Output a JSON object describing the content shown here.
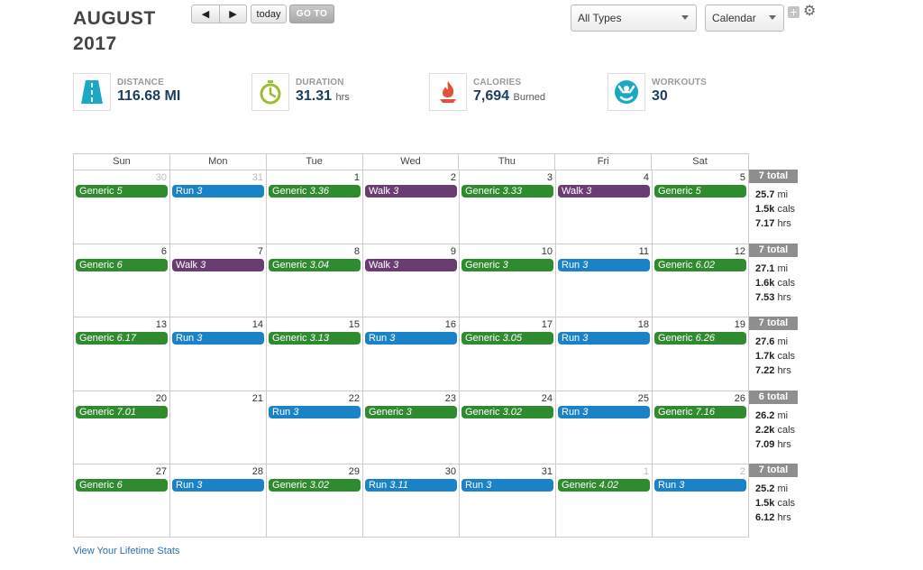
{
  "header": {
    "month": "AUGUST",
    "year": "2017",
    "prev_label": "◀",
    "next_label": "▶",
    "today_label": "today",
    "goto_label": "GO TO",
    "types_select": "All Types",
    "view_select": "Calendar"
  },
  "stats": [
    {
      "label": "DISTANCE",
      "value": "116.68 MI",
      "unit": "",
      "icon": "road-icon",
      "color": "#1aa9c4"
    },
    {
      "label": "DURATION",
      "value": "31.31",
      "unit": "hrs",
      "icon": "stopwatch-icon",
      "color": "#9bbe2d"
    },
    {
      "label": "CALORIES",
      "value": "7,694",
      "unit": "Burned",
      "icon": "flame-icon",
      "color": "#e0523b"
    },
    {
      "label": "WORKOUTS",
      "value": "30",
      "unit": "",
      "icon": "workout-person-icon",
      "color": "#1aa9c4"
    }
  ],
  "calendar": {
    "days_of_week": [
      "Sun",
      "Mon",
      "Tue",
      "Wed",
      "Thu",
      "Fri",
      "Sat"
    ],
    "weeks": [
      {
        "days": [
          {
            "num": "30",
            "other": true,
            "events": [
              {
                "type": "generic",
                "name": "Generic",
                "value": "5"
              }
            ]
          },
          {
            "num": "31",
            "other": true,
            "events": [
              {
                "type": "run",
                "name": "Run",
                "value": "3"
              }
            ]
          },
          {
            "num": "1",
            "other": false,
            "events": [
              {
                "type": "generic",
                "name": "Generic",
                "value": "3.36"
              }
            ]
          },
          {
            "num": "2",
            "other": false,
            "events": [
              {
                "type": "walk",
                "name": "Walk",
                "value": "3"
              }
            ]
          },
          {
            "num": "3",
            "other": false,
            "events": [
              {
                "type": "generic",
                "name": "Generic",
                "value": "3.33"
              }
            ]
          },
          {
            "num": "4",
            "other": false,
            "events": [
              {
                "type": "walk",
                "name": "Walk",
                "value": "3"
              }
            ]
          },
          {
            "num": "5",
            "other": false,
            "events": [
              {
                "type": "generic",
                "name": "Generic",
                "value": "5"
              }
            ]
          }
        ],
        "total": {
          "badge": "7 total",
          "mi": "25.7",
          "cals": "1.5k",
          "hrs": "7.17"
        }
      },
      {
        "days": [
          {
            "num": "6",
            "other": false,
            "events": [
              {
                "type": "generic",
                "name": "Generic",
                "value": "6"
              }
            ]
          },
          {
            "num": "7",
            "other": false,
            "events": [
              {
                "type": "walk",
                "name": "Walk",
                "value": "3"
              }
            ]
          },
          {
            "num": "8",
            "other": false,
            "events": [
              {
                "type": "generic",
                "name": "Generic",
                "value": "3.04"
              }
            ]
          },
          {
            "num": "9",
            "other": false,
            "events": [
              {
                "type": "walk",
                "name": "Walk",
                "value": "3"
              }
            ]
          },
          {
            "num": "10",
            "other": false,
            "events": [
              {
                "type": "generic",
                "name": "Generic",
                "value": "3"
              }
            ]
          },
          {
            "num": "11",
            "other": false,
            "events": [
              {
                "type": "run",
                "name": "Run",
                "value": "3"
              }
            ]
          },
          {
            "num": "12",
            "other": false,
            "events": [
              {
                "type": "generic",
                "name": "Generic",
                "value": "6.02"
              }
            ]
          }
        ],
        "total": {
          "badge": "7 total",
          "mi": "27.1",
          "cals": "1.6k",
          "hrs": "7.53"
        }
      },
      {
        "days": [
          {
            "num": "13",
            "other": false,
            "events": [
              {
                "type": "generic",
                "name": "Generic",
                "value": "6.17"
              }
            ]
          },
          {
            "num": "14",
            "other": false,
            "events": [
              {
                "type": "run",
                "name": "Run",
                "value": "3"
              }
            ]
          },
          {
            "num": "15",
            "other": false,
            "events": [
              {
                "type": "generic",
                "name": "Generic",
                "value": "3.13"
              }
            ]
          },
          {
            "num": "16",
            "other": false,
            "events": [
              {
                "type": "run",
                "name": "Run",
                "value": "3"
              }
            ]
          },
          {
            "num": "17",
            "other": false,
            "events": [
              {
                "type": "generic",
                "name": "Generic",
                "value": "3.05"
              }
            ]
          },
          {
            "num": "18",
            "other": false,
            "events": [
              {
                "type": "run",
                "name": "Run",
                "value": "3"
              }
            ]
          },
          {
            "num": "19",
            "other": false,
            "events": [
              {
                "type": "generic",
                "name": "Generic",
                "value": "6.26"
              }
            ]
          }
        ],
        "total": {
          "badge": "7 total",
          "mi": "27.6",
          "cals": "1.7k",
          "hrs": "7.22"
        }
      },
      {
        "days": [
          {
            "num": "20",
            "other": false,
            "events": [
              {
                "type": "generic",
                "name": "Generic",
                "value": "7.01"
              }
            ]
          },
          {
            "num": "21",
            "other": false,
            "events": []
          },
          {
            "num": "22",
            "other": false,
            "events": [
              {
                "type": "run",
                "name": "Run",
                "value": "3"
              }
            ]
          },
          {
            "num": "23",
            "other": false,
            "events": [
              {
                "type": "generic",
                "name": "Generic",
                "value": "3"
              }
            ]
          },
          {
            "num": "24",
            "other": false,
            "events": [
              {
                "type": "generic",
                "name": "Generic",
                "value": "3.02"
              }
            ]
          },
          {
            "num": "25",
            "other": false,
            "events": [
              {
                "type": "run",
                "name": "Run",
                "value": "3"
              }
            ]
          },
          {
            "num": "26",
            "other": false,
            "events": [
              {
                "type": "generic",
                "name": "Generic",
                "value": "7.16"
              }
            ]
          }
        ],
        "total": {
          "badge": "6 total",
          "mi": "26.2",
          "cals": "2.2k",
          "hrs": "7.09"
        }
      },
      {
        "days": [
          {
            "num": "27",
            "other": false,
            "events": [
              {
                "type": "generic",
                "name": "Generic",
                "value": "6"
              }
            ]
          },
          {
            "num": "28",
            "other": false,
            "events": [
              {
                "type": "run",
                "name": "Run",
                "value": "3"
              }
            ]
          },
          {
            "num": "29",
            "other": false,
            "events": [
              {
                "type": "generic",
                "name": "Generic",
                "value": "3.02"
              }
            ]
          },
          {
            "num": "30",
            "other": false,
            "events": [
              {
                "type": "run",
                "name": "Run",
                "value": "3.11"
              }
            ]
          },
          {
            "num": "31",
            "other": false,
            "events": [
              {
                "type": "run",
                "name": "Run",
                "value": "3"
              }
            ]
          },
          {
            "num": "1",
            "other": true,
            "events": [
              {
                "type": "generic",
                "name": "Generic",
                "value": "4.02"
              }
            ]
          },
          {
            "num": "2",
            "other": true,
            "events": [
              {
                "type": "run",
                "name": "Run",
                "value": "3"
              }
            ]
          }
        ],
        "total": {
          "badge": "7 total",
          "mi": "25.2",
          "cals": "1.5k",
          "hrs": "6.12"
        }
      }
    ],
    "total_units": {
      "mi": "mi",
      "cals": "cals",
      "hrs": "hrs"
    }
  },
  "footer": {
    "lifetime_link": "View Your Lifetime Stats"
  }
}
